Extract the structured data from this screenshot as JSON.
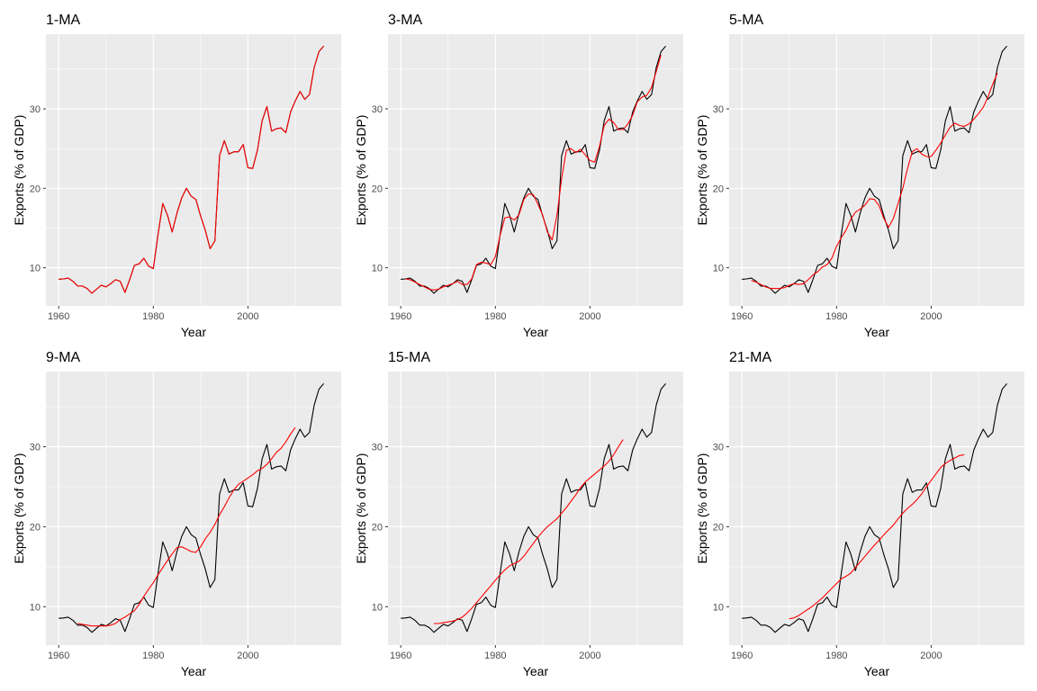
{
  "chart_data": [
    {
      "type": "line",
      "title": "1-MA",
      "xlabel": "Year",
      "ylabel": "Exports (% of GDP)",
      "xlim": [
        1957.3,
        2019.7
      ],
      "ylim": [
        5.2,
        39.4
      ],
      "x_ticks": [
        1960,
        1980,
        2000
      ],
      "y_ticks": [
        10,
        20,
        30
      ],
      "grid": true,
      "series": [
        {
          "label_key": "data",
          "color": "#000000",
          "start_year": 1960,
          "values": [
            8.55,
            8.6,
            8.7,
            8.3,
            7.7,
            7.7,
            7.4,
            6.8,
            7.3,
            7.8,
            7.6,
            8.0,
            8.5,
            8.3,
            6.9,
            8.5,
            10.3,
            10.5,
            11.2,
            10.2,
            9.9,
            14.2,
            18.1,
            16.6,
            14.5,
            16.9,
            18.8,
            20.0,
            19.0,
            18.6,
            16.5,
            14.7,
            12.4,
            13.4,
            24.1,
            26.0,
            24.3,
            24.6,
            24.6,
            25.5,
            22.6,
            22.5,
            24.8,
            28.5,
            30.3,
            27.2,
            27.5,
            27.6,
            27.0,
            29.6,
            31.0,
            32.2,
            31.2,
            31.8,
            35.2,
            37.2,
            37.9
          ]
        },
        {
          "label_key": "ma",
          "color": "#ff0000",
          "start_year": 1960,
          "values": [
            8.55,
            8.6,
            8.7,
            8.3,
            7.7,
            7.7,
            7.4,
            6.8,
            7.3,
            7.8,
            7.6,
            8.0,
            8.5,
            8.3,
            6.9,
            8.5,
            10.3,
            10.5,
            11.2,
            10.2,
            9.9,
            14.2,
            18.1,
            16.6,
            14.5,
            16.9,
            18.8,
            20.0,
            19.0,
            18.6,
            16.5,
            14.7,
            12.4,
            13.4,
            24.1,
            26.0,
            24.3,
            24.6,
            24.6,
            25.5,
            22.6,
            22.5,
            24.8,
            28.5,
            30.3,
            27.2,
            27.5,
            27.6,
            27.0,
            29.6,
            31.0,
            32.2,
            31.2,
            31.8,
            35.2,
            37.2,
            37.9
          ]
        }
      ]
    },
    {
      "type": "line",
      "title": "3-MA",
      "xlabel": "Year",
      "ylabel": "Exports (% of GDP)",
      "xlim": [
        1957.3,
        2019.7
      ],
      "ylim": [
        5.2,
        39.4
      ],
      "x_ticks": [
        1960,
        1980,
        2000
      ],
      "y_ticks": [
        10,
        20,
        30
      ],
      "grid": true,
      "series": [
        {
          "label_key": "data",
          "color": "#000000",
          "start_year": 1960,
          "values": [
            8.55,
            8.6,
            8.7,
            8.3,
            7.7,
            7.7,
            7.4,
            6.8,
            7.3,
            7.8,
            7.6,
            8.0,
            8.5,
            8.3,
            6.9,
            8.5,
            10.3,
            10.5,
            11.2,
            10.2,
            9.9,
            14.2,
            18.1,
            16.6,
            14.5,
            16.9,
            18.8,
            20.0,
            19.0,
            18.6,
            16.5,
            14.7,
            12.4,
            13.4,
            24.1,
            26.0,
            24.3,
            24.6,
            24.6,
            25.5,
            22.6,
            22.5,
            24.8,
            28.5,
            30.3,
            27.2,
            27.5,
            27.6,
            27.0,
            29.6,
            31.0,
            32.2,
            31.2,
            31.8,
            35.2,
            37.2,
            37.9
          ]
        },
        {
          "label_key": "ma",
          "color": "#ff0000",
          "start_year": 1961,
          "values": [
            8.6,
            8.5,
            8.2,
            7.9,
            7.6,
            7.3,
            7.2,
            7.3,
            7.6,
            7.8,
            8.0,
            8.3,
            7.9,
            7.9,
            8.6,
            10.4,
            10.7,
            10.6,
            10.4,
            11.4,
            14.1,
            16.3,
            16.4,
            16.0,
            16.7,
            18.6,
            19.3,
            19.2,
            18.0,
            16.6,
            14.5,
            13.5,
            16.6,
            21.2,
            24.8,
            25.0,
            24.5,
            24.9,
            24.2,
            23.5,
            23.3,
            25.3,
            27.9,
            28.7,
            28.3,
            27.4,
            27.4,
            28.1,
            29.2,
            30.9,
            31.5,
            31.7,
            32.7,
            34.7,
            36.8
          ]
        }
      ]
    },
    {
      "type": "line",
      "title": "5-MA",
      "xlabel": "Year",
      "ylabel": "Exports (% of GDP)",
      "xlim": [
        1957.3,
        2019.7
      ],
      "ylim": [
        5.2,
        39.4
      ],
      "x_ticks": [
        1960,
        1980,
        2000
      ],
      "y_ticks": [
        10,
        20,
        30
      ],
      "grid": true,
      "series": [
        {
          "label_key": "data",
          "color": "#000000",
          "start_year": 1960,
          "values": [
            8.55,
            8.6,
            8.7,
            8.3,
            7.7,
            7.7,
            7.4,
            6.8,
            7.3,
            7.8,
            7.6,
            8.0,
            8.5,
            8.3,
            6.9,
            8.5,
            10.3,
            10.5,
            11.2,
            10.2,
            9.9,
            14.2,
            18.1,
            16.6,
            14.5,
            16.9,
            18.8,
            20.0,
            19.0,
            18.6,
            16.5,
            14.7,
            12.4,
            13.4,
            24.1,
            26.0,
            24.3,
            24.6,
            24.6,
            25.5,
            22.6,
            22.5,
            24.8,
            28.5,
            30.3,
            27.2,
            27.5,
            27.6,
            27.0,
            29.6,
            31.0,
            32.2,
            31.2,
            31.8,
            35.2,
            37.2,
            37.9
          ]
        },
        {
          "label_key": "ma",
          "color": "#ff0000",
          "start_year": 1962,
          "values": [
            8.4,
            8.2,
            7.9,
            7.6,
            7.4,
            7.4,
            7.4,
            7.5,
            7.8,
            8.0,
            7.9,
            8.0,
            8.5,
            9.1,
            9.5,
            10.1,
            10.4,
            11.2,
            12.7,
            13.8,
            14.7,
            16.1,
            17.0,
            17.4,
            17.9,
            18.7,
            18.6,
            17.8,
            16.2,
            15.1,
            16.2,
            18.1,
            20.0,
            22.5,
            24.6,
            25.0,
            24.3,
            24.0,
            24.0,
            24.8,
            25.7,
            26.7,
            27.7,
            28.2,
            27.9,
            27.8,
            28.1,
            28.7,
            29.4,
            30.2,
            31.5,
            33.1,
            34.5
          ]
        }
      ]
    },
    {
      "type": "line",
      "title": "9-MA",
      "xlabel": "Year",
      "ylabel": "Exports (% of GDP)",
      "xlim": [
        1957.3,
        2019.7
      ],
      "ylim": [
        5.2,
        39.4
      ],
      "x_ticks": [
        1960,
        1980,
        2000
      ],
      "y_ticks": [
        10,
        20,
        30
      ],
      "grid": true,
      "series": [
        {
          "label_key": "data",
          "color": "#000000",
          "start_year": 1960,
          "values": [
            8.55,
            8.6,
            8.7,
            8.3,
            7.7,
            7.7,
            7.4,
            6.8,
            7.3,
            7.8,
            7.6,
            8.0,
            8.5,
            8.3,
            6.9,
            8.5,
            10.3,
            10.5,
            11.2,
            10.2,
            9.9,
            14.2,
            18.1,
            16.6,
            14.5,
            16.9,
            18.8,
            20.0,
            19.0,
            18.6,
            16.5,
            14.7,
            12.4,
            13.4,
            24.1,
            26.0,
            24.3,
            24.6,
            24.6,
            25.5,
            22.6,
            22.5,
            24.8,
            28.5,
            30.3,
            27.2,
            27.5,
            27.6,
            27.0,
            29.6,
            31.0,
            32.2,
            31.2,
            31.8,
            35.2,
            37.2,
            37.9
          ]
        },
        {
          "label_key": "ma",
          "color": "#ff0000",
          "start_year": 1964,
          "values": [
            7.9,
            7.8,
            7.7,
            7.6,
            7.6,
            7.6,
            7.6,
            7.7,
            7.9,
            8.4,
            8.7,
            9.1,
            9.5,
            10.3,
            11.3,
            12.2,
            13.0,
            14.0,
            14.9,
            15.8,
            16.6,
            17.4,
            17.5,
            17.2,
            16.9,
            16.8,
            17.5,
            18.5,
            19.3,
            20.3,
            21.5,
            22.5,
            23.6,
            24.6,
            25.3,
            25.7,
            26.1,
            26.5,
            27.0,
            27.3,
            27.8,
            28.5,
            29.3,
            29.8,
            30.6,
            31.6,
            32.4
          ]
        }
      ]
    },
    {
      "type": "line",
      "title": "15-MA",
      "xlabel": "Year",
      "ylabel": "Exports (% of GDP)",
      "xlim": [
        1957.3,
        2019.7
      ],
      "ylim": [
        5.2,
        39.4
      ],
      "x_ticks": [
        1960,
        1980,
        2000
      ],
      "y_ticks": [
        10,
        20,
        30
      ],
      "grid": true,
      "series": [
        {
          "label_key": "data",
          "color": "#000000",
          "start_year": 1960,
          "values": [
            8.55,
            8.6,
            8.7,
            8.3,
            7.7,
            7.7,
            7.4,
            6.8,
            7.3,
            7.8,
            7.6,
            8.0,
            8.5,
            8.3,
            6.9,
            8.5,
            10.3,
            10.5,
            11.2,
            10.2,
            9.9,
            14.2,
            18.1,
            16.6,
            14.5,
            16.9,
            18.8,
            20.0,
            19.0,
            18.6,
            16.5,
            14.7,
            12.4,
            13.4,
            24.1,
            26.0,
            24.3,
            24.6,
            24.6,
            25.5,
            22.6,
            22.5,
            24.8,
            28.5,
            30.3,
            27.2,
            27.5,
            27.6,
            27.0,
            29.6,
            31.0,
            32.2,
            31.2,
            31.8,
            35.2,
            37.2,
            37.9
          ]
        },
        {
          "label_key": "ma",
          "color": "#ff0000",
          "start_year": 1967,
          "values": [
            7.9,
            7.9,
            8.0,
            8.1,
            8.2,
            8.4,
            8.7,
            9.2,
            9.8,
            10.5,
            11.2,
            11.9,
            12.6,
            13.3,
            14.0,
            14.6,
            15.1,
            15.4,
            15.7,
            16.3,
            17.1,
            17.9,
            18.7,
            19.4,
            20.0,
            20.5,
            21.0,
            21.7,
            22.4,
            23.2,
            24.0,
            24.9,
            25.6,
            26.1,
            26.6,
            27.1,
            27.6,
            28.2,
            29.0,
            30.0,
            30.9
          ]
        }
      ]
    },
    {
      "type": "line",
      "title": "21-MA",
      "xlabel": "Year",
      "ylabel": "Exports (% of GDP)",
      "xlim": [
        1957.3,
        2019.7
      ],
      "ylim": [
        5.2,
        39.4
      ],
      "x_ticks": [
        1960,
        1980,
        2000
      ],
      "y_ticks": [
        10,
        20,
        30
      ],
      "grid": true,
      "series": [
        {
          "label_key": "data",
          "color": "#000000",
          "start_year": 1960,
          "values": [
            8.55,
            8.6,
            8.7,
            8.3,
            7.7,
            7.7,
            7.4,
            6.8,
            7.3,
            7.8,
            7.6,
            8.0,
            8.5,
            8.3,
            6.9,
            8.5,
            10.3,
            10.5,
            11.2,
            10.2,
            9.9,
            14.2,
            18.1,
            16.6,
            14.5,
            16.9,
            18.8,
            20.0,
            19.0,
            18.6,
            16.5,
            14.7,
            12.4,
            13.4,
            24.1,
            26.0,
            24.3,
            24.6,
            24.6,
            25.5,
            22.6,
            22.5,
            24.8,
            28.5,
            30.3,
            27.2,
            27.5,
            27.6,
            27.0,
            29.6,
            31.0,
            32.2,
            31.2,
            31.8,
            35.2,
            37.2,
            37.9
          ]
        },
        {
          "label_key": "ma",
          "color": "#ff0000",
          "start_year": 1970,
          "values": [
            8.5,
            8.6,
            8.9,
            9.3,
            9.7,
            10.1,
            10.6,
            11.1,
            11.7,
            12.3,
            12.9,
            13.5,
            13.8,
            14.2,
            14.9,
            15.6,
            16.3,
            17.0,
            17.7,
            18.3,
            19.0,
            19.6,
            20.2,
            21.0,
            21.7,
            22.3,
            22.8,
            23.4,
            24.1,
            25.0,
            25.8,
            26.6,
            27.4,
            27.9,
            28.3,
            28.6,
            28.9,
            29.0
          ]
        }
      ]
    }
  ]
}
